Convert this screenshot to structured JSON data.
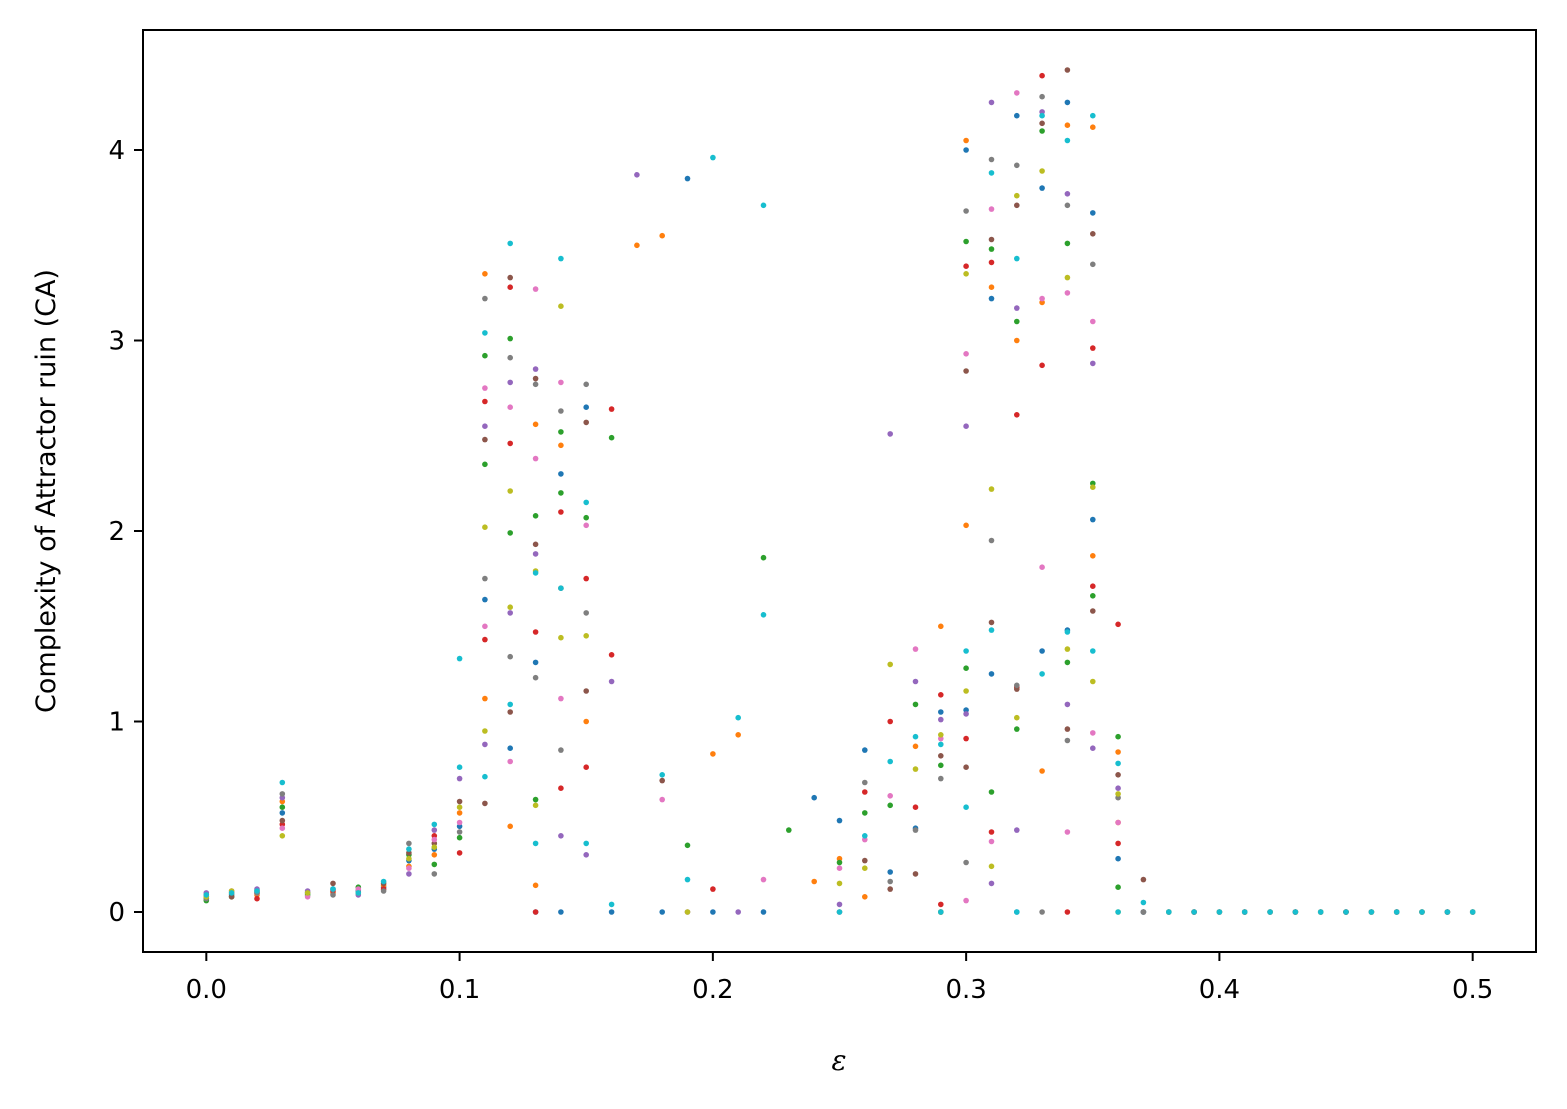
{
  "chart_data": {
    "type": "scatter",
    "title": "",
    "xlabel": "ε",
    "ylabel": "Complexity of Attractor ruin (CA)",
    "xlim": [
      -0.025,
      0.525
    ],
    "ylim": [
      -0.21,
      4.63
    ],
    "x_ticks": [
      0.0,
      0.1,
      0.2,
      0.3,
      0.4,
      0.5
    ],
    "x_tick_labels": [
      "0.0",
      "0.1",
      "0.2",
      "0.3",
      "0.4",
      "0.5"
    ],
    "y_ticks": [
      0,
      1,
      2,
      3,
      4
    ],
    "y_tick_labels": [
      "0",
      "1",
      "2",
      "3",
      "4"
    ],
    "grid": false,
    "legend": "none",
    "palette": [
      "#1f77b4",
      "#ff7f0e",
      "#2ca02c",
      "#d62728",
      "#9467bd",
      "#8c564b",
      "#e377c2",
      "#7f7f7f",
      "#bcbd22",
      "#17becf"
    ],
    "series": [
      {
        "x": [
          0.0,
          0.01,
          0.02,
          0.03,
          0.04,
          0.05,
          0.06,
          0.07,
          0.08,
          0.09,
          0.1,
          0.11,
          0.12,
          0.13,
          0.13,
          0.14,
          0.14,
          0.15,
          0.16,
          0.18,
          0.19,
          0.2,
          0.22,
          0.24,
          0.25,
          0.26,
          0.27,
          0.28,
          0.29,
          0.29,
          0.3,
          0.3,
          0.31,
          0.31,
          0.32,
          0.32,
          0.33,
          0.33,
          0.34,
          0.34,
          0.35,
          0.35,
          0.36,
          0.37,
          0.38,
          0.4,
          0.42,
          0.44,
          0.46,
          0.48,
          0.5
        ],
        "y": [
          0.08,
          0.09,
          0.1,
          0.52,
          0.1,
          0.12,
          0.11,
          0.13,
          0.27,
          0.33,
          0.45,
          1.64,
          0.86,
          0.0,
          1.31,
          0.0,
          2.3,
          2.65,
          0.0,
          0.0,
          3.85,
          0.0,
          0.0,
          0.6,
          0.48,
          0.85,
          0.21,
          0.44,
          0.0,
          1.05,
          4.0,
          1.06,
          3.22,
          1.25,
          4.18,
          0.0,
          3.8,
          1.37,
          4.25,
          1.48,
          3.67,
          2.06,
          0.28,
          0.0,
          0.0,
          0.0,
          0.0,
          0.0,
          0.0,
          0.0,
          0.0
        ]
      },
      {
        "x": [
          0.0,
          0.01,
          0.02,
          0.03,
          0.05,
          0.07,
          0.08,
          0.09,
          0.1,
          0.11,
          0.11,
          0.12,
          0.13,
          0.13,
          0.14,
          0.15,
          0.17,
          0.18,
          0.2,
          0.21,
          0.24,
          0.25,
          0.26,
          0.28,
          0.29,
          0.29,
          0.3,
          0.3,
          0.31,
          0.32,
          0.33,
          0.33,
          0.34,
          0.35,
          0.35,
          0.36,
          0.36,
          0.39,
          0.41,
          0.43,
          0.45,
          0.47,
          0.49
        ],
        "y": [
          0.07,
          0.1,
          0.09,
          0.58,
          0.1,
          0.14,
          0.24,
          0.3,
          0.52,
          3.35,
          1.12,
          0.45,
          2.56,
          0.14,
          2.45,
          1.0,
          3.5,
          3.55,
          0.83,
          0.93,
          0.16,
          0.28,
          0.08,
          0.87,
          1.5,
          0.0,
          4.05,
          2.03,
          3.28,
          3.0,
          3.2,
          0.74,
          4.13,
          4.12,
          1.87,
          0.84,
          0.47,
          0.0,
          0.0,
          0.0,
          0.0,
          0.0,
          0.0
        ]
      },
      {
        "x": [
          0.0,
          0.01,
          0.02,
          0.03,
          0.04,
          0.06,
          0.08,
          0.09,
          0.1,
          0.11,
          0.11,
          0.12,
          0.12,
          0.13,
          0.13,
          0.14,
          0.14,
          0.15,
          0.16,
          0.19,
          0.22,
          0.23,
          0.25,
          0.26,
          0.27,
          0.28,
          0.29,
          0.29,
          0.3,
          0.3,
          0.31,
          0.31,
          0.32,
          0.32,
          0.33,
          0.34,
          0.34,
          0.35,
          0.35,
          0.36,
          0.36,
          0.37,
          0.38,
          0.4,
          0.42,
          0.44,
          0.46,
          0.48,
          0.5
        ],
        "y": [
          0.06,
          0.08,
          0.11,
          0.55,
          0.09,
          0.13,
          0.3,
          0.25,
          0.39,
          2.92,
          2.35,
          3.01,
          1.99,
          2.08,
          0.59,
          2.52,
          2.2,
          2.07,
          2.49,
          0.35,
          1.86,
          0.43,
          0.26,
          0.52,
          0.56,
          1.09,
          0.77,
          0.0,
          3.52,
          1.28,
          3.48,
          0.63,
          3.1,
          0.96,
          4.1,
          3.51,
          1.31,
          2.25,
          1.66,
          0.92,
          0.13,
          0.0,
          0.0,
          0.0,
          0.0,
          0.0,
          0.0,
          0.0,
          0.0
        ]
      },
      {
        "x": [
          0.0,
          0.02,
          0.03,
          0.05,
          0.07,
          0.09,
          0.1,
          0.11,
          0.11,
          0.12,
          0.12,
          0.13,
          0.13,
          0.14,
          0.14,
          0.15,
          0.15,
          0.16,
          0.16,
          0.2,
          0.26,
          0.27,
          0.28,
          0.29,
          0.29,
          0.3,
          0.3,
          0.31,
          0.31,
          0.32,
          0.32,
          0.33,
          0.33,
          0.34,
          0.35,
          0.35,
          0.36,
          0.36,
          0.39,
          0.41,
          0.43,
          0.45,
          0.47,
          0.49
        ],
        "y": [
          0.09,
          0.07,
          0.46,
          0.11,
          0.12,
          0.4,
          0.31,
          2.68,
          1.43,
          3.28,
          2.46,
          0.0,
          1.47,
          2.1,
          0.65,
          1.75,
          0.76,
          2.64,
          1.35,
          0.12,
          0.63,
          1.0,
          0.55,
          1.14,
          0.04,
          3.39,
          0.91,
          3.41,
          0.42,
          2.61,
          1.18,
          4.39,
          2.87,
          0.0,
          2.96,
          1.71,
          1.51,
          0.36,
          0.0,
          0.0,
          0.0,
          0.0,
          0.0,
          0.0
        ]
      },
      {
        "x": [
          0.0,
          0.02,
          0.03,
          0.04,
          0.06,
          0.08,
          0.09,
          0.1,
          0.11,
          0.11,
          0.12,
          0.12,
          0.13,
          0.13,
          0.14,
          0.15,
          0.16,
          0.17,
          0.19,
          0.21,
          0.25,
          0.27,
          0.28,
          0.29,
          0.3,
          0.3,
          0.31,
          0.31,
          0.32,
          0.32,
          0.33,
          0.34,
          0.34,
          0.35,
          0.35,
          0.36,
          0.37,
          0.38,
          0.4,
          0.42,
          0.44,
          0.46,
          0.48,
          0.5
        ],
        "y": [
          0.1,
          0.12,
          0.6,
          0.11,
          0.09,
          0.2,
          0.43,
          0.7,
          2.55,
          0.88,
          2.78,
          1.57,
          2.85,
          1.88,
          0.4,
          0.3,
          1.21,
          3.87,
          0.0,
          0.0,
          0.04,
          2.51,
          1.21,
          1.01,
          2.55,
          1.04,
          4.25,
          0.15,
          3.17,
          0.43,
          4.2,
          3.77,
          1.09,
          2.88,
          0.86,
          0.65,
          0.0,
          0.0,
          0.0,
          0.0,
          0.0,
          0.0,
          0.0,
          0.0
        ]
      },
      {
        "x": [
          0.01,
          0.03,
          0.05,
          0.07,
          0.08,
          0.09,
          0.1,
          0.11,
          0.11,
          0.12,
          0.12,
          0.13,
          0.13,
          0.14,
          0.15,
          0.15,
          0.18,
          0.25,
          0.26,
          0.27,
          0.28,
          0.29,
          0.3,
          0.3,
          0.31,
          0.31,
          0.32,
          0.32,
          0.33,
          0.34,
          0.34,
          0.35,
          0.35,
          0.36,
          0.37,
          0.39,
          0.41,
          0.43,
          0.45,
          0.47,
          0.49
        ],
        "y": [
          0.08,
          0.48,
          0.15,
          0.15,
          0.31,
          0.36,
          0.58,
          2.48,
          0.57,
          3.33,
          1.05,
          2.8,
          1.93,
          1.7,
          2.57,
          1.16,
          0.69,
          0.0,
          0.27,
          0.12,
          0.2,
          0.82,
          2.84,
          0.76,
          3.53,
          1.52,
          3.71,
          1.17,
          4.14,
          4.42,
          0.96,
          3.56,
          1.58,
          0.72,
          0.17,
          0.0,
          0.0,
          0.0,
          0.0,
          0.0,
          0.0
        ]
      },
      {
        "x": [
          0.01,
          0.02,
          0.03,
          0.04,
          0.06,
          0.08,
          0.09,
          0.1,
          0.11,
          0.11,
          0.12,
          0.12,
          0.13,
          0.13,
          0.14,
          0.14,
          0.15,
          0.18,
          0.22,
          0.25,
          0.26,
          0.27,
          0.28,
          0.29,
          0.29,
          0.3,
          0.3,
          0.31,
          0.31,
          0.32,
          0.33,
          0.33,
          0.34,
          0.34,
          0.35,
          0.35,
          0.36,
          0.38,
          0.4,
          0.42,
          0.44,
          0.46,
          0.48,
          0.5
        ],
        "y": [
          0.11,
          0.1,
          0.44,
          0.08,
          0.12,
          0.23,
          0.38,
          0.47,
          2.75,
          1.5,
          2.65,
          0.79,
          3.27,
          2.38,
          2.78,
          1.12,
          2.03,
          0.59,
          0.17,
          0.23,
          0.38,
          0.61,
          1.38,
          0.91,
          0.0,
          2.93,
          0.06,
          3.69,
          0.37,
          4.3,
          3.22,
          1.81,
          3.25,
          0.42,
          3.1,
          0.94,
          0.47,
          0.0,
          0.0,
          0.0,
          0.0,
          0.0,
          0.0,
          0.0
        ]
      },
      {
        "x": [
          0.0,
          0.02,
          0.03,
          0.05,
          0.07,
          0.08,
          0.09,
          0.1,
          0.11,
          0.11,
          0.12,
          0.12,
          0.13,
          0.13,
          0.14,
          0.14,
          0.15,
          0.15,
          0.26,
          0.27,
          0.28,
          0.29,
          0.3,
          0.3,
          0.31,
          0.31,
          0.32,
          0.32,
          0.33,
          0.33,
          0.34,
          0.34,
          0.35,
          0.36,
          0.37,
          0.39,
          0.41,
          0.43,
          0.45,
          0.47,
          0.49
        ],
        "y": [
          0.07,
          0.1,
          0.62,
          0.09,
          0.11,
          0.36,
          0.2,
          0.42,
          3.22,
          1.75,
          2.91,
          1.34,
          2.77,
          1.23,
          2.63,
          0.85,
          2.77,
          1.57,
          0.68,
          0.16,
          0.43,
          0.7,
          3.68,
          0.26,
          3.95,
          1.95,
          3.92,
          1.19,
          4.28,
          0.0,
          3.71,
          0.9,
          3.4,
          0.6,
          0.0,
          0.0,
          0.0,
          0.0,
          0.0,
          0.0,
          0.0
        ]
      },
      {
        "x": [
          0.0,
          0.01,
          0.03,
          0.04,
          0.06,
          0.08,
          0.09,
          0.1,
          0.11,
          0.11,
          0.12,
          0.12,
          0.13,
          0.13,
          0.14,
          0.14,
          0.15,
          0.19,
          0.25,
          0.26,
          0.27,
          0.28,
          0.29,
          0.29,
          0.3,
          0.3,
          0.31,
          0.31,
          0.32,
          0.32,
          0.33,
          0.34,
          0.34,
          0.35,
          0.35,
          0.36,
          0.36,
          0.38,
          0.4,
          0.42,
          0.44,
          0.46,
          0.48,
          0.5
        ],
        "y": [
          0.08,
          0.11,
          0.4,
          0.1,
          0.1,
          0.28,
          0.34,
          0.55,
          2.02,
          0.95,
          2.21,
          1.6,
          1.79,
          0.56,
          3.18,
          1.44,
          1.45,
          0.0,
          0.15,
          0.23,
          1.3,
          0.75,
          0.93,
          0.0,
          3.35,
          1.16,
          2.22,
          0.24,
          3.76,
          1.02,
          3.89,
          3.33,
          1.38,
          2.23,
          1.21,
          0.62,
          0.0,
          0.0,
          0.0,
          0.0,
          0.0,
          0.0,
          0.0,
          0.0
        ]
      },
      {
        "x": [
          0.0,
          0.01,
          0.02,
          0.03,
          0.05,
          0.06,
          0.07,
          0.08,
          0.09,
          0.1,
          0.1,
          0.11,
          0.11,
          0.12,
          0.12,
          0.13,
          0.13,
          0.14,
          0.14,
          0.15,
          0.15,
          0.16,
          0.18,
          0.19,
          0.2,
          0.21,
          0.22,
          0.22,
          0.25,
          0.26,
          0.27,
          0.28,
          0.29,
          0.29,
          0.3,
          0.3,
          0.31,
          0.31,
          0.32,
          0.32,
          0.33,
          0.33,
          0.34,
          0.34,
          0.35,
          0.35,
          0.36,
          0.36,
          0.37,
          0.38,
          0.39,
          0.4,
          0.41,
          0.42,
          0.43,
          0.44,
          0.45,
          0.46,
          0.47,
          0.48,
          0.49,
          0.5
        ],
        "y": [
          0.09,
          0.1,
          0.11,
          0.68,
          0.12,
          0.1,
          0.16,
          0.33,
          0.46,
          1.33,
          0.76,
          3.04,
          0.71,
          3.51,
          1.09,
          1.78,
          0.36,
          3.43,
          1.7,
          2.15,
          0.36,
          0.04,
          0.72,
          0.17,
          3.96,
          1.02,
          3.71,
          1.56,
          0.0,
          0.4,
          0.79,
          0.92,
          0.88,
          0.0,
          0.55,
          1.37,
          1.48,
          3.88,
          0.0,
          3.43,
          4.18,
          1.25,
          4.05,
          1.47,
          4.18,
          1.37,
          0.78,
          0.0,
          0.05,
          0.0,
          0.0,
          0.0,
          0.0,
          0.0,
          0.0,
          0.0,
          0.0,
          0.0,
          0.0,
          0.0,
          0.0,
          0.0
        ]
      }
    ]
  }
}
